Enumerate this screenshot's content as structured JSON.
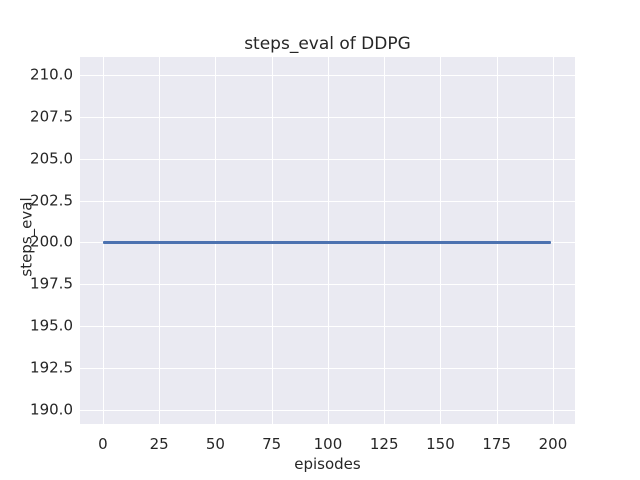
{
  "figure": {
    "background": "#FFFFFF",
    "plot_background": "#EAEAF2",
    "grid_color": "#FFFFFF",
    "text_color": "#262626"
  },
  "chart_data": {
    "type": "line",
    "title": "steps_eval of DDPG",
    "xlabel": "episodes",
    "ylabel": "steps_eval",
    "x_ticks": [
      0,
      25,
      50,
      75,
      100,
      125,
      150,
      175,
      200
    ],
    "x_tick_labels": [
      "0",
      "25",
      "50",
      "75",
      "100",
      "125",
      "150",
      "175",
      "200"
    ],
    "y_ticks": [
      190.0,
      192.5,
      195.0,
      197.5,
      200.0,
      202.5,
      205.0,
      207.5,
      210.0
    ],
    "y_tick_labels": [
      "190.0",
      "192.5",
      "195.0",
      "197.5",
      "200.0",
      "202.5",
      "205.0",
      "207.5",
      "210.0"
    ],
    "xlim": [
      -10.2,
      209.8
    ],
    "ylim": [
      189.16,
      211.07
    ],
    "grid": true,
    "legend_visible": false,
    "series": [
      {
        "name": "DDPG",
        "color": "#4C72B0",
        "x": [
          0,
          199
        ],
        "y": [
          200,
          200
        ]
      }
    ]
  }
}
